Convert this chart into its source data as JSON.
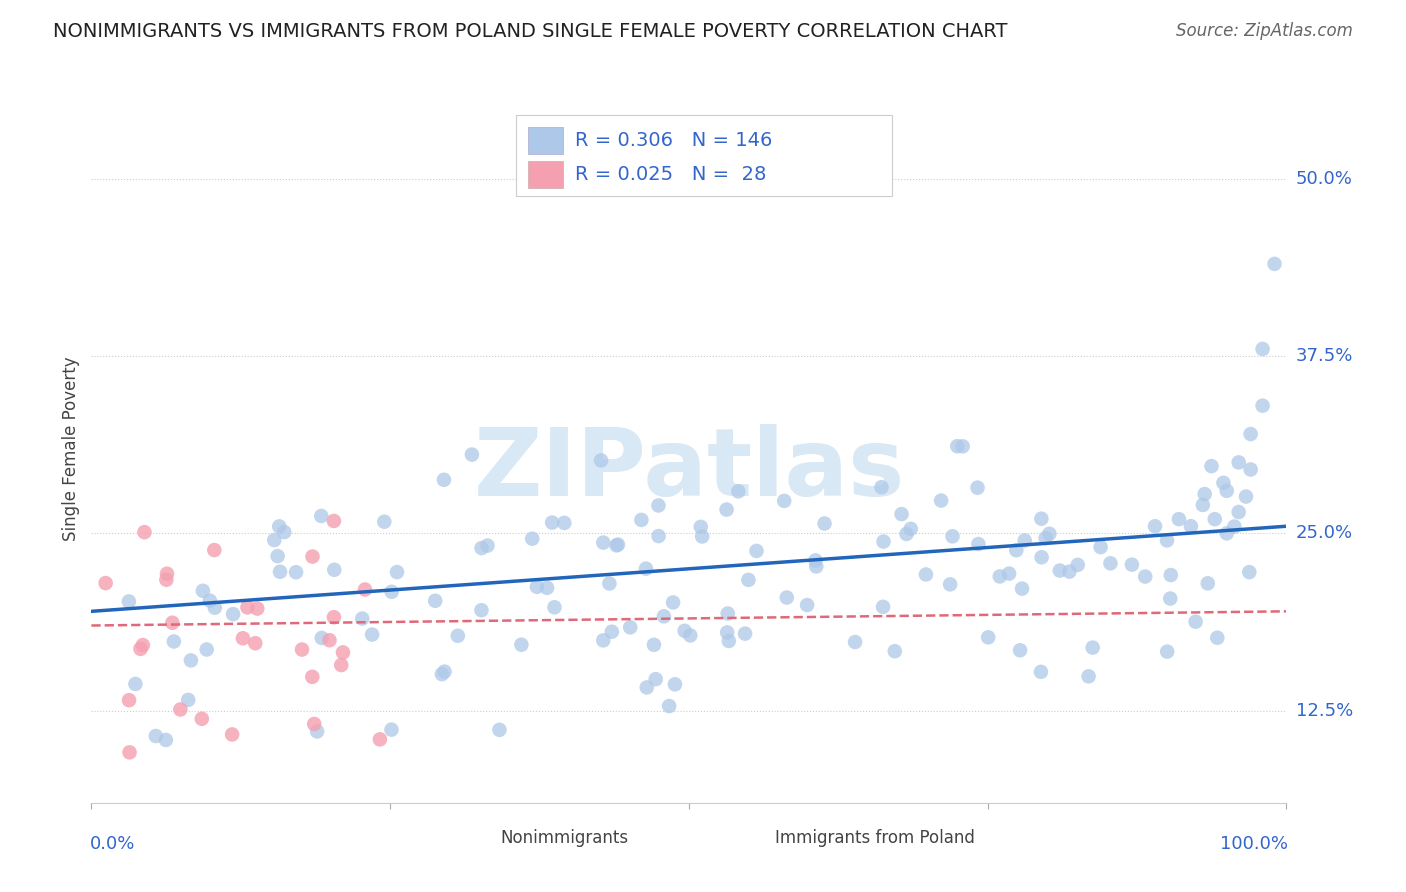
{
  "title": "NONIMMIGRANTS VS IMMIGRANTS FROM POLAND SINGLE FEMALE POVERTY CORRELATION CHART",
  "source": "Source: ZipAtlas.com",
  "ylabel": "Single Female Poverty",
  "nonimmigrant_R": "0.306",
  "nonimmigrant_N": "146",
  "immigrant_R": "0.025",
  "immigrant_N": "28",
  "blue_scatter_color": "#adc8e8",
  "blue_line_color": "#2266bb",
  "pink_scatter_color": "#f4a0b0",
  "pink_line_color": "#e06878",
  "y_ticks": [
    0.125,
    0.25,
    0.375,
    0.5
  ],
  "y_tick_labels": [
    "12.5%",
    "25.0%",
    "37.5%",
    "50.0%"
  ],
  "tick_label_color": "#3366cc",
  "xlim": [
    0.0,
    1.0
  ],
  "ylim": [
    0.06,
    0.56
  ],
  "watermark": "ZIPatlas",
  "watermark_color": "#d8e8f4",
  "grid_color": "#cccccc",
  "title_fontsize": 14,
  "source_fontsize": 12,
  "tick_fontsize": 13,
  "ylabel_fontsize": 12
}
